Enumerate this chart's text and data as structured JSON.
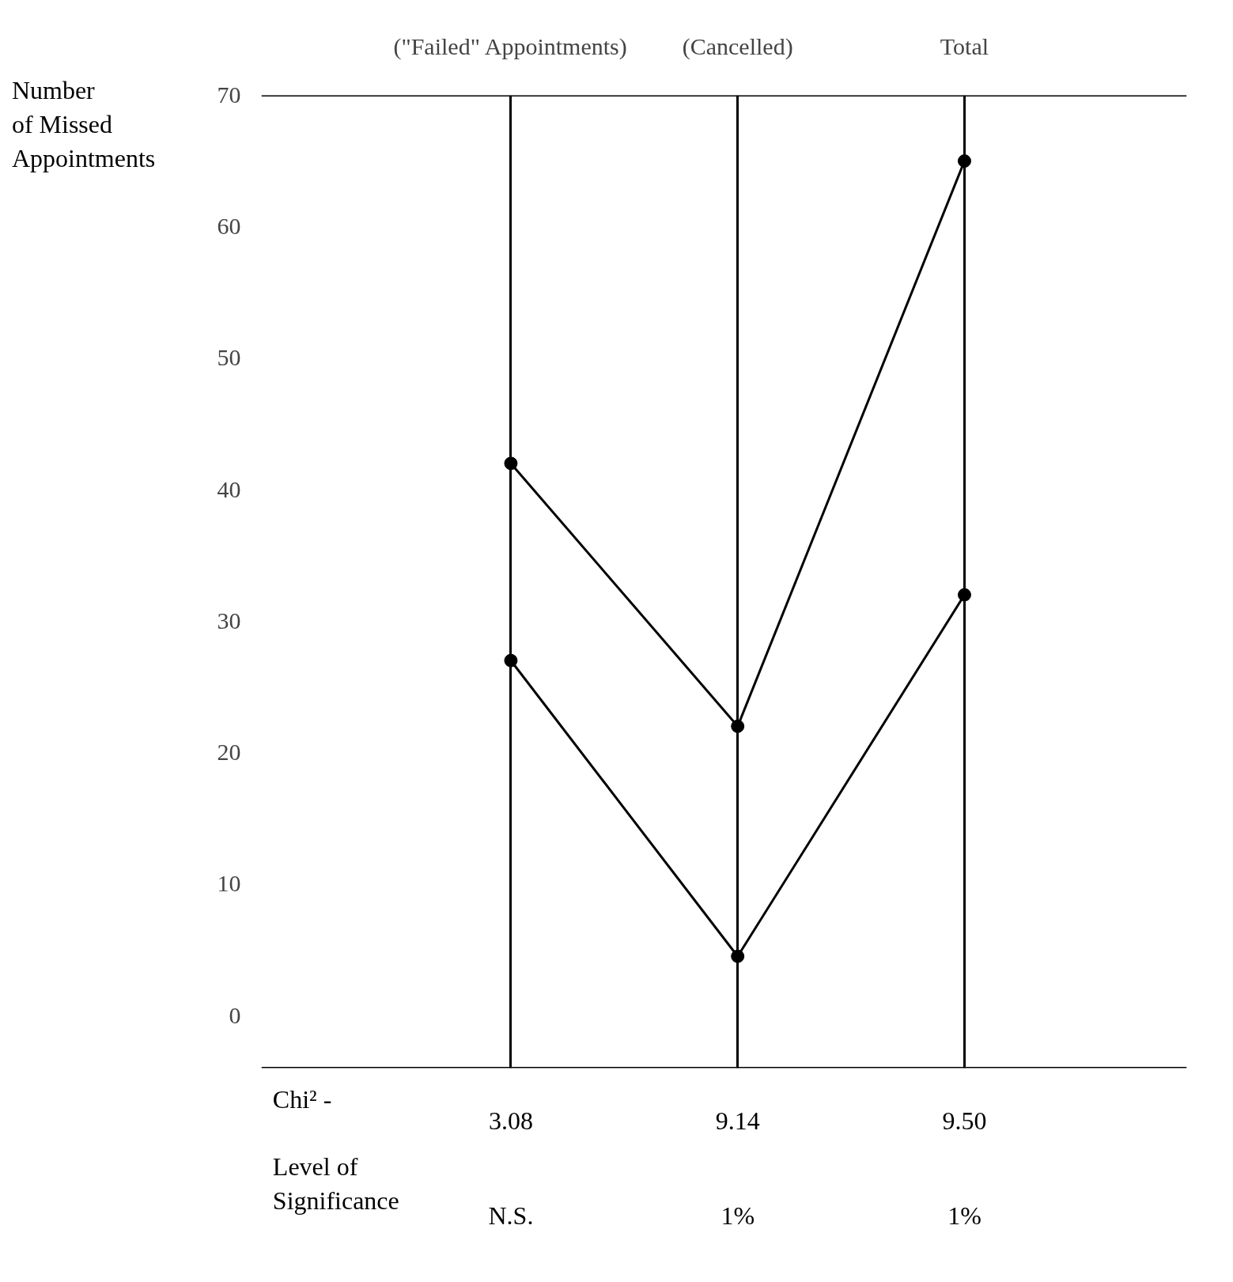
{
  "chart_data": {
    "type": "line",
    "ylabel": "Number of Missed Appointments",
    "categories": [
      "(\"Failed\" Appointments)",
      "(Cancelled)",
      "Total"
    ],
    "series": [
      {
        "color": "#000000",
        "values": [
          42,
          22,
          65
        ]
      },
      {
        "color": "#000000",
        "values": [
          27,
          4.5,
          32
        ]
      }
    ],
    "ylim": [
      -4,
      70
    ],
    "yticks": [
      0,
      10,
      20,
      30,
      40,
      50,
      60,
      70
    ],
    "grid": "x",
    "marker": "circle",
    "line_style": "solid",
    "annotations": [
      "Chi² -",
      "3.08",
      "9.14",
      "9.50",
      "Level of Significance",
      "N.S.",
      "1%",
      "1%"
    ]
  }
}
